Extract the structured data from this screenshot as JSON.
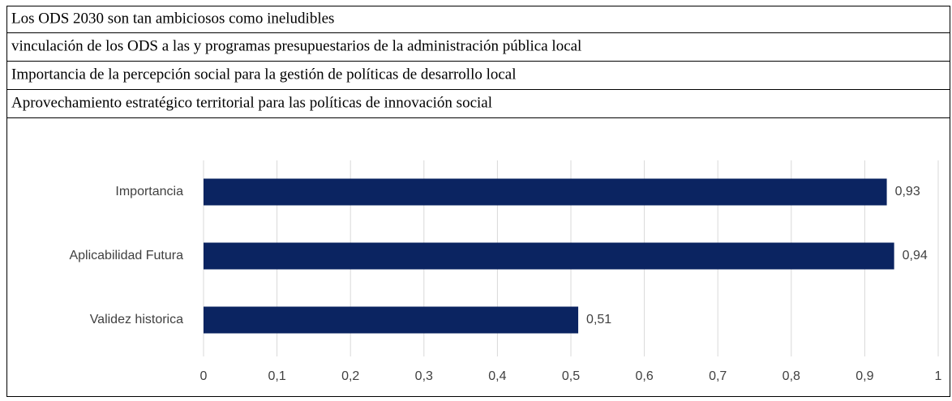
{
  "rows": [
    "Los ODS  2030 son tan ambiciosos como ineludibles",
    "vinculación de los ODS a las y programas presupuestarios de la administración pública local",
    "Importancia de la percepción social para la gestión de políticas de desarrollo local",
    "Aprovechamiento estratégico territorial para las políticas de innovación social"
  ],
  "chart_data": {
    "type": "bar",
    "orientation": "horizontal",
    "categories": [
      "Importancia",
      "Aplicabilidad Futura",
      "Validez historica"
    ],
    "values": [
      0.93,
      0.94,
      0.51
    ],
    "value_labels": [
      "0,93",
      "0,94",
      "0,51"
    ],
    "color": "#0b2461",
    "xlim": [
      0,
      1
    ],
    "xticks": [
      0,
      {
        "value": 0.1,
        "label": "0,1"
      },
      {
        "value": 0.2,
        "label": "0,2"
      },
      {
        "value": 0.3,
        "label": "0,3"
      },
      {
        "value": 0.4,
        "label": "0,4"
      },
      {
        "value": 0.5,
        "label": "0,5"
      },
      {
        "value": 0.6,
        "label": "0,6"
      },
      {
        "value": 0.7,
        "label": "0,7"
      },
      {
        "value": 0.8,
        "label": "0,8"
      },
      {
        "value": 0.9,
        "label": "0,9"
      },
      1
    ],
    "grid": true
  }
}
